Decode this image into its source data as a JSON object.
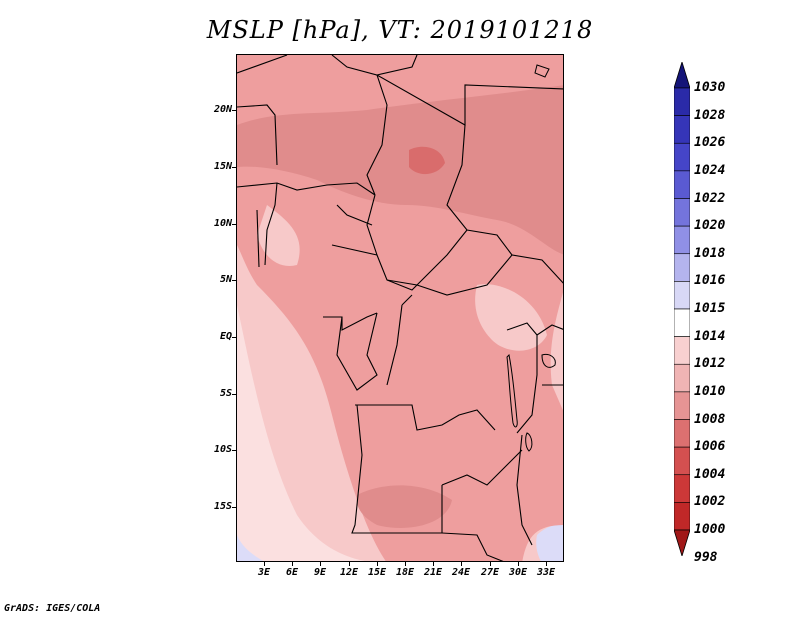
{
  "title": "MSLP [hPa], VT: 2019101218",
  "credit": "GrADS: IGES/COLA",
  "lat_labels": [
    "20N",
    "15N",
    "10N",
    "5N",
    "EQ",
    "5S",
    "10S",
    "15S"
  ],
  "lon_labels": [
    "3E",
    "6E",
    "9E",
    "12E",
    "15E",
    "18E",
    "21E",
    "24E",
    "27E",
    "30E",
    "33E"
  ],
  "colorbar": {
    "levels": [
      "1030",
      "1028",
      "1026",
      "1024",
      "1022",
      "1020",
      "1018",
      "1016",
      "1015",
      "1014",
      "1012",
      "1010",
      "1008",
      "1006",
      "1004",
      "1002",
      "1000",
      "998"
    ],
    "colors": [
      "#1a1a8c",
      "#2a2aa8",
      "#3535b8",
      "#4545c8",
      "#5a5ad2",
      "#7474dc",
      "#9090e6",
      "#b4b4ee",
      "#d8d8f6",
      "#ffffff",
      "#f8d0d0",
      "#f0b4b4",
      "#e69494",
      "#dc7070",
      "#d45050",
      "#cc3838",
      "#c02828",
      "#a81c1c"
    ],
    "top_arrow_color": "#141478",
    "bottom_arrow_color": "#a01818"
  },
  "map": {
    "colors": {
      "low_1008": "#e08c8c",
      "mid_1010": "#ee9e9e",
      "high_1012": "#f7c9c9",
      "high_1014": "#fbe0e0",
      "blue_1016": "#dcdcf8",
      "core_1006": "#d96c6c",
      "borders": "#000000"
    }
  }
}
